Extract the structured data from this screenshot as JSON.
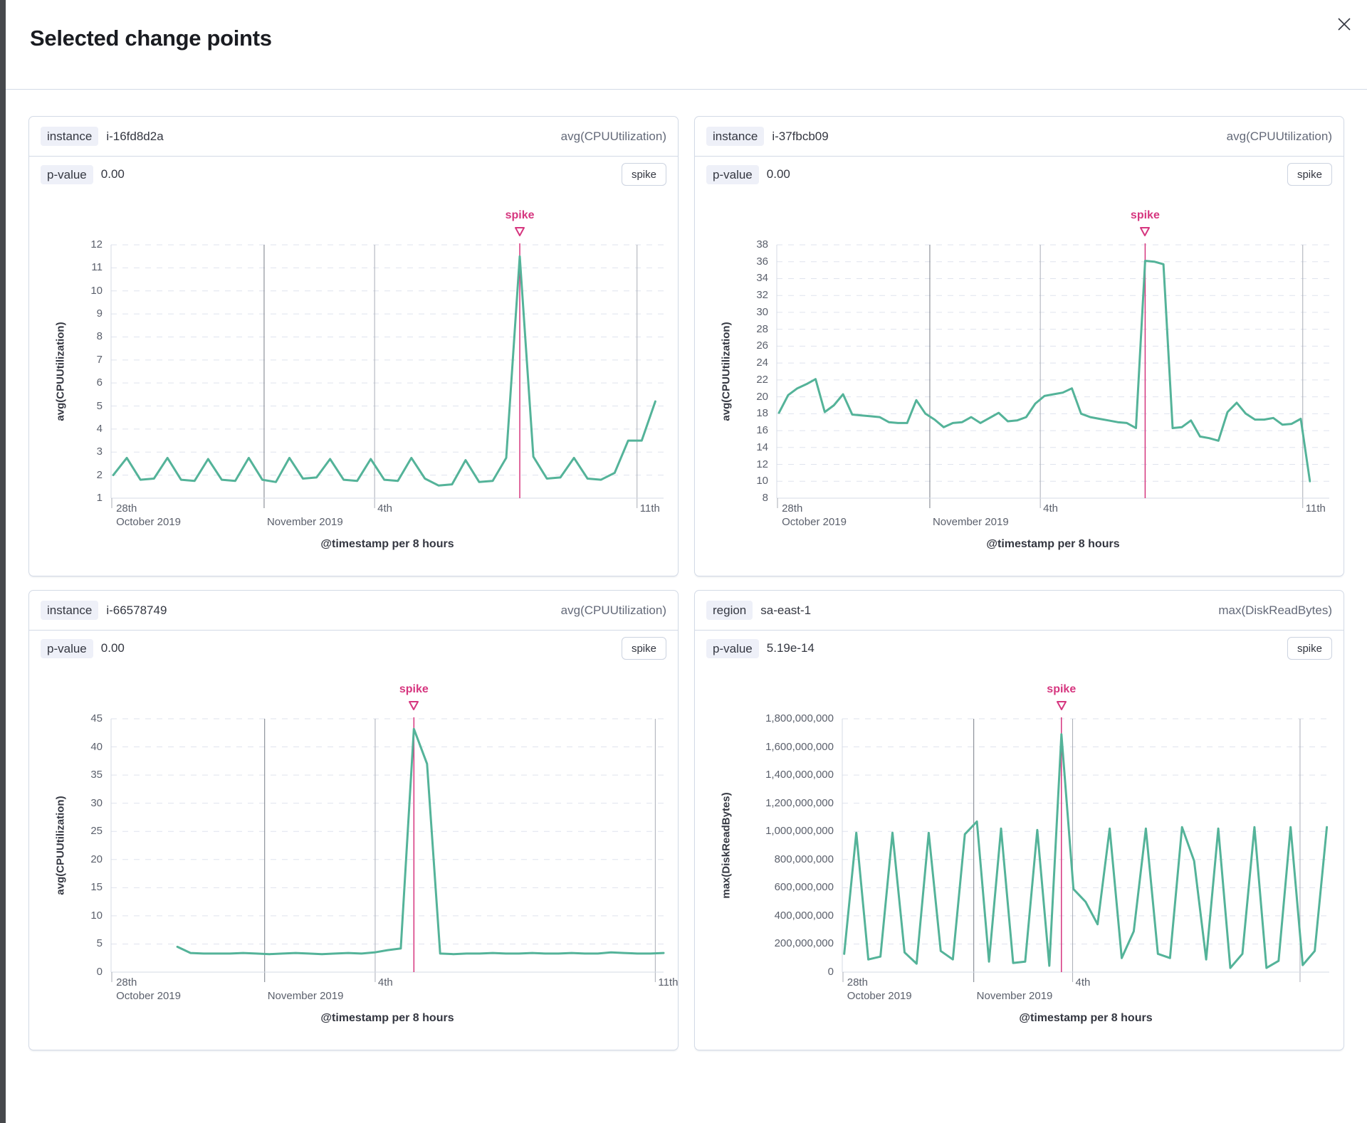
{
  "modal": {
    "title": "Selected change points"
  },
  "colors": {
    "line": "#54b399",
    "annotation": "#d6367f",
    "grid_dashed": "#dfe3ee",
    "grid_vertical_major": "#787d87",
    "grid_vertical_minor": "#a9adb6",
    "axis_line": "#d5dbe6",
    "tick_text": "#5b606c",
    "text": "#343741",
    "subdued": "#646a79"
  },
  "cards": [
    {
      "field": "instance",
      "value": "i-16fd8d2a",
      "metric": "avg(CPUUtilization)",
      "p_label": "p-value",
      "p_value": "0.00",
      "change_type": "spike"
    },
    {
      "field": "instance",
      "value": "i-37fbcb09",
      "metric": "avg(CPUUtilization)",
      "p_label": "p-value",
      "p_value": "0.00",
      "change_type": "spike"
    },
    {
      "field": "instance",
      "value": "i-66578749",
      "metric": "avg(CPUUtilization)",
      "p_label": "p-value",
      "p_value": "0.00",
      "change_type": "spike"
    },
    {
      "field": "region",
      "value": "sa-east-1",
      "metric": "max(DiskReadBytes)",
      "p_label": "p-value",
      "p_value": "5.19e-14",
      "change_type": "spike"
    }
  ],
  "chart_data": [
    {
      "type": "line",
      "ylabel": "avg(CPUUtilization)",
      "xlabel": "@timestamp per 8 hours",
      "annotation": "spike",
      "ylim": [
        1,
        12
      ],
      "yticks": [
        1,
        2,
        3,
        4,
        5,
        6,
        7,
        8,
        9,
        10,
        11,
        12
      ],
      "ytick_labels": [
        "1",
        "2",
        "3",
        "4",
        "5",
        "6",
        "7",
        "8",
        "9",
        "10",
        "11",
        "12"
      ],
      "x_ticks": [
        {
          "frac": 0.004,
          "top": "28th",
          "bottom": "October 2019"
        },
        {
          "frac": 0.277,
          "bottom": "November 2019"
        },
        {
          "frac": 0.477,
          "top": "4th"
        },
        {
          "frac": 0.952,
          "top": "11th"
        }
      ],
      "vlines": [
        {
          "frac": 0.277,
          "major": true
        },
        {
          "frac": 0.477,
          "major": false
        },
        {
          "frac": 0.952,
          "major": false
        }
      ],
      "series_start_frac": 0.004,
      "series_end_frac": 0.985,
      "values": [
        2.0,
        2.75,
        1.8,
        1.85,
        2.75,
        1.8,
        1.75,
        2.7,
        1.8,
        1.75,
        2.75,
        1.8,
        1.7,
        2.75,
        1.85,
        1.9,
        2.7,
        1.8,
        1.75,
        2.7,
        1.8,
        1.75,
        2.75,
        1.85,
        1.55,
        1.6,
        2.65,
        1.7,
        1.75,
        2.75,
        11.5,
        2.8,
        1.85,
        1.9,
        2.75,
        1.85,
        1.8,
        2.1,
        3.5,
        3.5,
        5.2
      ]
    },
    {
      "type": "line",
      "ylabel": "avg(CPUUtilization)",
      "xlabel": "@timestamp per 8 hours",
      "annotation": "spike",
      "ylim": [
        8,
        38
      ],
      "yticks": [
        8,
        10,
        12,
        14,
        16,
        18,
        20,
        22,
        24,
        26,
        28,
        30,
        32,
        34,
        36,
        38
      ],
      "ytick_labels": [
        "8",
        "10",
        "12",
        "14",
        "16",
        "18",
        "20",
        "22",
        "24",
        "26",
        "28",
        "30",
        "32",
        "34",
        "36",
        "38"
      ],
      "x_ticks": [
        {
          "frac": 0.004,
          "top": "28th",
          "bottom": "October 2019"
        },
        {
          "frac": 0.277,
          "bottom": "November 2019"
        },
        {
          "frac": 0.477,
          "top": "4th"
        },
        {
          "frac": 0.952,
          "top": "11th"
        }
      ],
      "vlines": [
        {
          "frac": 0.277,
          "major": true
        },
        {
          "frac": 0.477,
          "major": false
        },
        {
          "frac": 0.952,
          "major": false
        }
      ],
      "series_start_frac": 0.004,
      "series_end_frac": 0.965,
      "values": [
        18.1,
        20.2,
        21.0,
        21.5,
        22.1,
        18.2,
        19.0,
        20.3,
        17.9,
        17.8,
        17.7,
        17.6,
        17.0,
        16.9,
        16.9,
        19.6,
        18.0,
        17.3,
        16.4,
        16.9,
        17.0,
        17.6,
        16.9,
        17.5,
        18.1,
        17.1,
        17.2,
        17.6,
        19.2,
        20.1,
        20.3,
        20.5,
        21.0,
        18.0,
        17.6,
        17.4,
        17.2,
        17.0,
        16.9,
        16.3,
        36.1,
        36.0,
        35.7,
        16.3,
        16.4,
        17.2,
        15.3,
        15.1,
        14.8,
        18.2,
        19.3,
        18.0,
        17.3,
        17.3,
        17.5,
        16.7,
        16.8,
        17.4,
        10.0
      ]
    },
    {
      "type": "line",
      "ylabel": "avg(CPUUtilization)",
      "xlabel": "@timestamp per 8 hours",
      "annotation": "spike",
      "ylim": [
        0,
        45
      ],
      "yticks": [
        0,
        5,
        10,
        15,
        20,
        25,
        30,
        35,
        40,
        45
      ],
      "ytick_labels": [
        "0",
        "5",
        "10",
        "15",
        "20",
        "25",
        "30",
        "35",
        "40",
        "45"
      ],
      "x_ticks": [
        {
          "frac": 0.004,
          "top": "28th",
          "bottom": "October 2019"
        },
        {
          "frac": 0.278,
          "bottom": "November 2019"
        },
        {
          "frac": 0.478,
          "top": "4th"
        },
        {
          "frac": 0.985,
          "top": "11th"
        }
      ],
      "vlines": [
        {
          "frac": 0.278,
          "major": true
        },
        {
          "frac": 0.478,
          "major": false
        },
        {
          "frac": 0.985,
          "major": false
        }
      ],
      "series_start_frac": 0.12,
      "series_end_frac": 1.0,
      "values": [
        4.5,
        3.4,
        3.3,
        3.3,
        3.3,
        3.4,
        3.3,
        3.2,
        3.3,
        3.4,
        3.3,
        3.2,
        3.3,
        3.4,
        3.3,
        3.5,
        3.9,
        4.2,
        43.2,
        37.0,
        3.3,
        3.2,
        3.3,
        3.3,
        3.4,
        3.3,
        3.3,
        3.4,
        3.3,
        3.3,
        3.4,
        3.3,
        3.3,
        3.5,
        3.4,
        3.3,
        3.3,
        3.4
      ]
    },
    {
      "type": "line",
      "ylabel": "max(DiskReadBytes)",
      "xlabel": "@timestamp per 8 hours",
      "annotation": "spike",
      "ylim": [
        0,
        1800000000
      ],
      "yticks": [
        0,
        200000000,
        400000000,
        600000000,
        800000000,
        1000000000,
        1200000000,
        1400000000,
        1600000000,
        1800000000
      ],
      "ytick_labels": [
        "0",
        "200,000,000",
        "400,000,000",
        "600,000,000",
        "800,000,000",
        "1,000,000,000",
        "1,200,000,000",
        "1,400,000,000",
        "1,600,000,000",
        "1,800,000,000"
      ],
      "x_ticks": [
        {
          "frac": 0.004,
          "top": "28th",
          "bottom": "October 2019"
        },
        {
          "frac": 0.27,
          "bottom": "November 2019"
        },
        {
          "frac": 0.473,
          "top": "4th"
        }
      ],
      "vlines": [
        {
          "frac": 0.27,
          "major": true
        },
        {
          "frac": 0.473,
          "major": false
        },
        {
          "frac": 0.94,
          "major": false
        }
      ],
      "series_start_frac": 0.004,
      "series_end_frac": 0.995,
      "values": [
        130000000,
        990000000,
        90000000,
        110000000,
        990000000,
        140000000,
        60000000,
        990000000,
        150000000,
        90000000,
        980000000,
        1070000000,
        75000000,
        1020000000,
        65000000,
        75000000,
        1010000000,
        45000000,
        1690000000,
        590000000,
        500000000,
        340000000,
        1020000000,
        100000000,
        290000000,
        1020000000,
        130000000,
        100000000,
        1030000000,
        790000000,
        90000000,
        1020000000,
        30000000,
        130000000,
        1030000000,
        30000000,
        80000000,
        1030000000,
        50000000,
        150000000,
        1030000000
      ]
    }
  ]
}
